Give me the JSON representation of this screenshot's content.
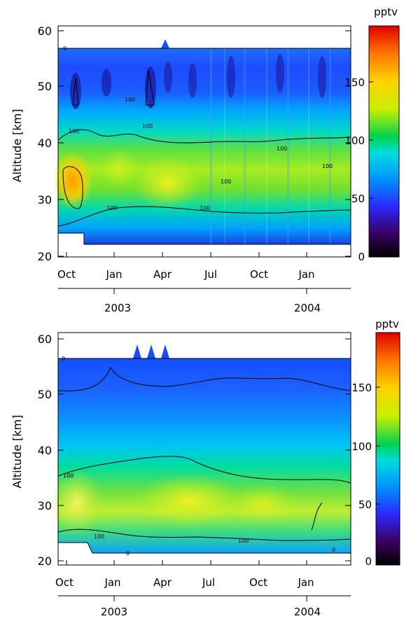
{
  "chart_data": [
    {
      "type": "heatmap",
      "title": "",
      "ylabel": "Altitude [km]",
      "ylim": [
        19.5,
        61
      ],
      "yticks": [
        20,
        30,
        40,
        50,
        60
      ],
      "xticks": [
        "Oct",
        "Jan",
        "Apr",
        "Jul",
        "Oct",
        "Jan"
      ],
      "years": [
        "2003",
        "2004"
      ],
      "colorbar": {
        "unit": "pptv",
        "range": [
          0,
          195
        ],
        "ticks": [
          0,
          50,
          100,
          150
        ]
      },
      "contour_labels": [
        "0",
        "100",
        "100",
        "100",
        "100",
        "100",
        "100",
        "100",
        "100"
      ],
      "contour_levels": [
        0,
        100
      ],
      "series": [
        {
          "name": "",
          "values_by_altitude_km": [
            {
              "alt": 22,
              "value": 20
            },
            {
              "alt": 25,
              "value": 75
            },
            {
              "alt": 30,
              "value": 128
            },
            {
              "alt": 33,
              "value": 140
            },
            {
              "alt": 38,
              "value": 110
            },
            {
              "alt": 42,
              "value": 85
            },
            {
              "alt": 48,
              "value": 40
            },
            {
              "alt": 52,
              "value": 25
            },
            {
              "alt": 56,
              "value": 45
            }
          ]
        }
      ]
    },
    {
      "type": "heatmap",
      "title": "",
      "ylabel": "Altitude [km]",
      "ylim": [
        19.5,
        61
      ],
      "yticks": [
        20,
        30,
        40,
        50,
        60
      ],
      "xticks": [
        "Oct",
        "Jan",
        "Apr",
        "Jul",
        "Oct",
        "Jan"
      ],
      "years": [
        "2003",
        "2004"
      ],
      "colorbar": {
        "unit": "pptv",
        "range": [
          0,
          195
        ],
        "ticks": [
          0,
          50,
          100,
          150
        ]
      },
      "contour_labels": [
        "0",
        "100",
        "100",
        "100",
        "0",
        "0"
      ],
      "contour_levels": [
        0,
        100
      ],
      "series": [
        {
          "name": "",
          "values_by_altitude_km": [
            {
              "alt": 22,
              "value": 30
            },
            {
              "alt": 25,
              "value": 90
            },
            {
              "alt": 29,
              "value": 135
            },
            {
              "alt": 33,
              "value": 115
            },
            {
              "alt": 38,
              "value": 85
            },
            {
              "alt": 43,
              "value": 65
            },
            {
              "alt": 48,
              "value": 45
            },
            {
              "alt": 53,
              "value": 28
            },
            {
              "alt": 56,
              "value": 25
            }
          ]
        }
      ]
    }
  ],
  "palette": {
    "c0": "#000000",
    "c1": "#3a0060",
    "c2": "#2a2aff",
    "c3": "#0096ff",
    "c4": "#00dcdc",
    "c5": "#00d250",
    "c6": "#c8f000",
    "c7": "#ffd200",
    "c8": "#ff7800",
    "c9": "#e00000"
  }
}
